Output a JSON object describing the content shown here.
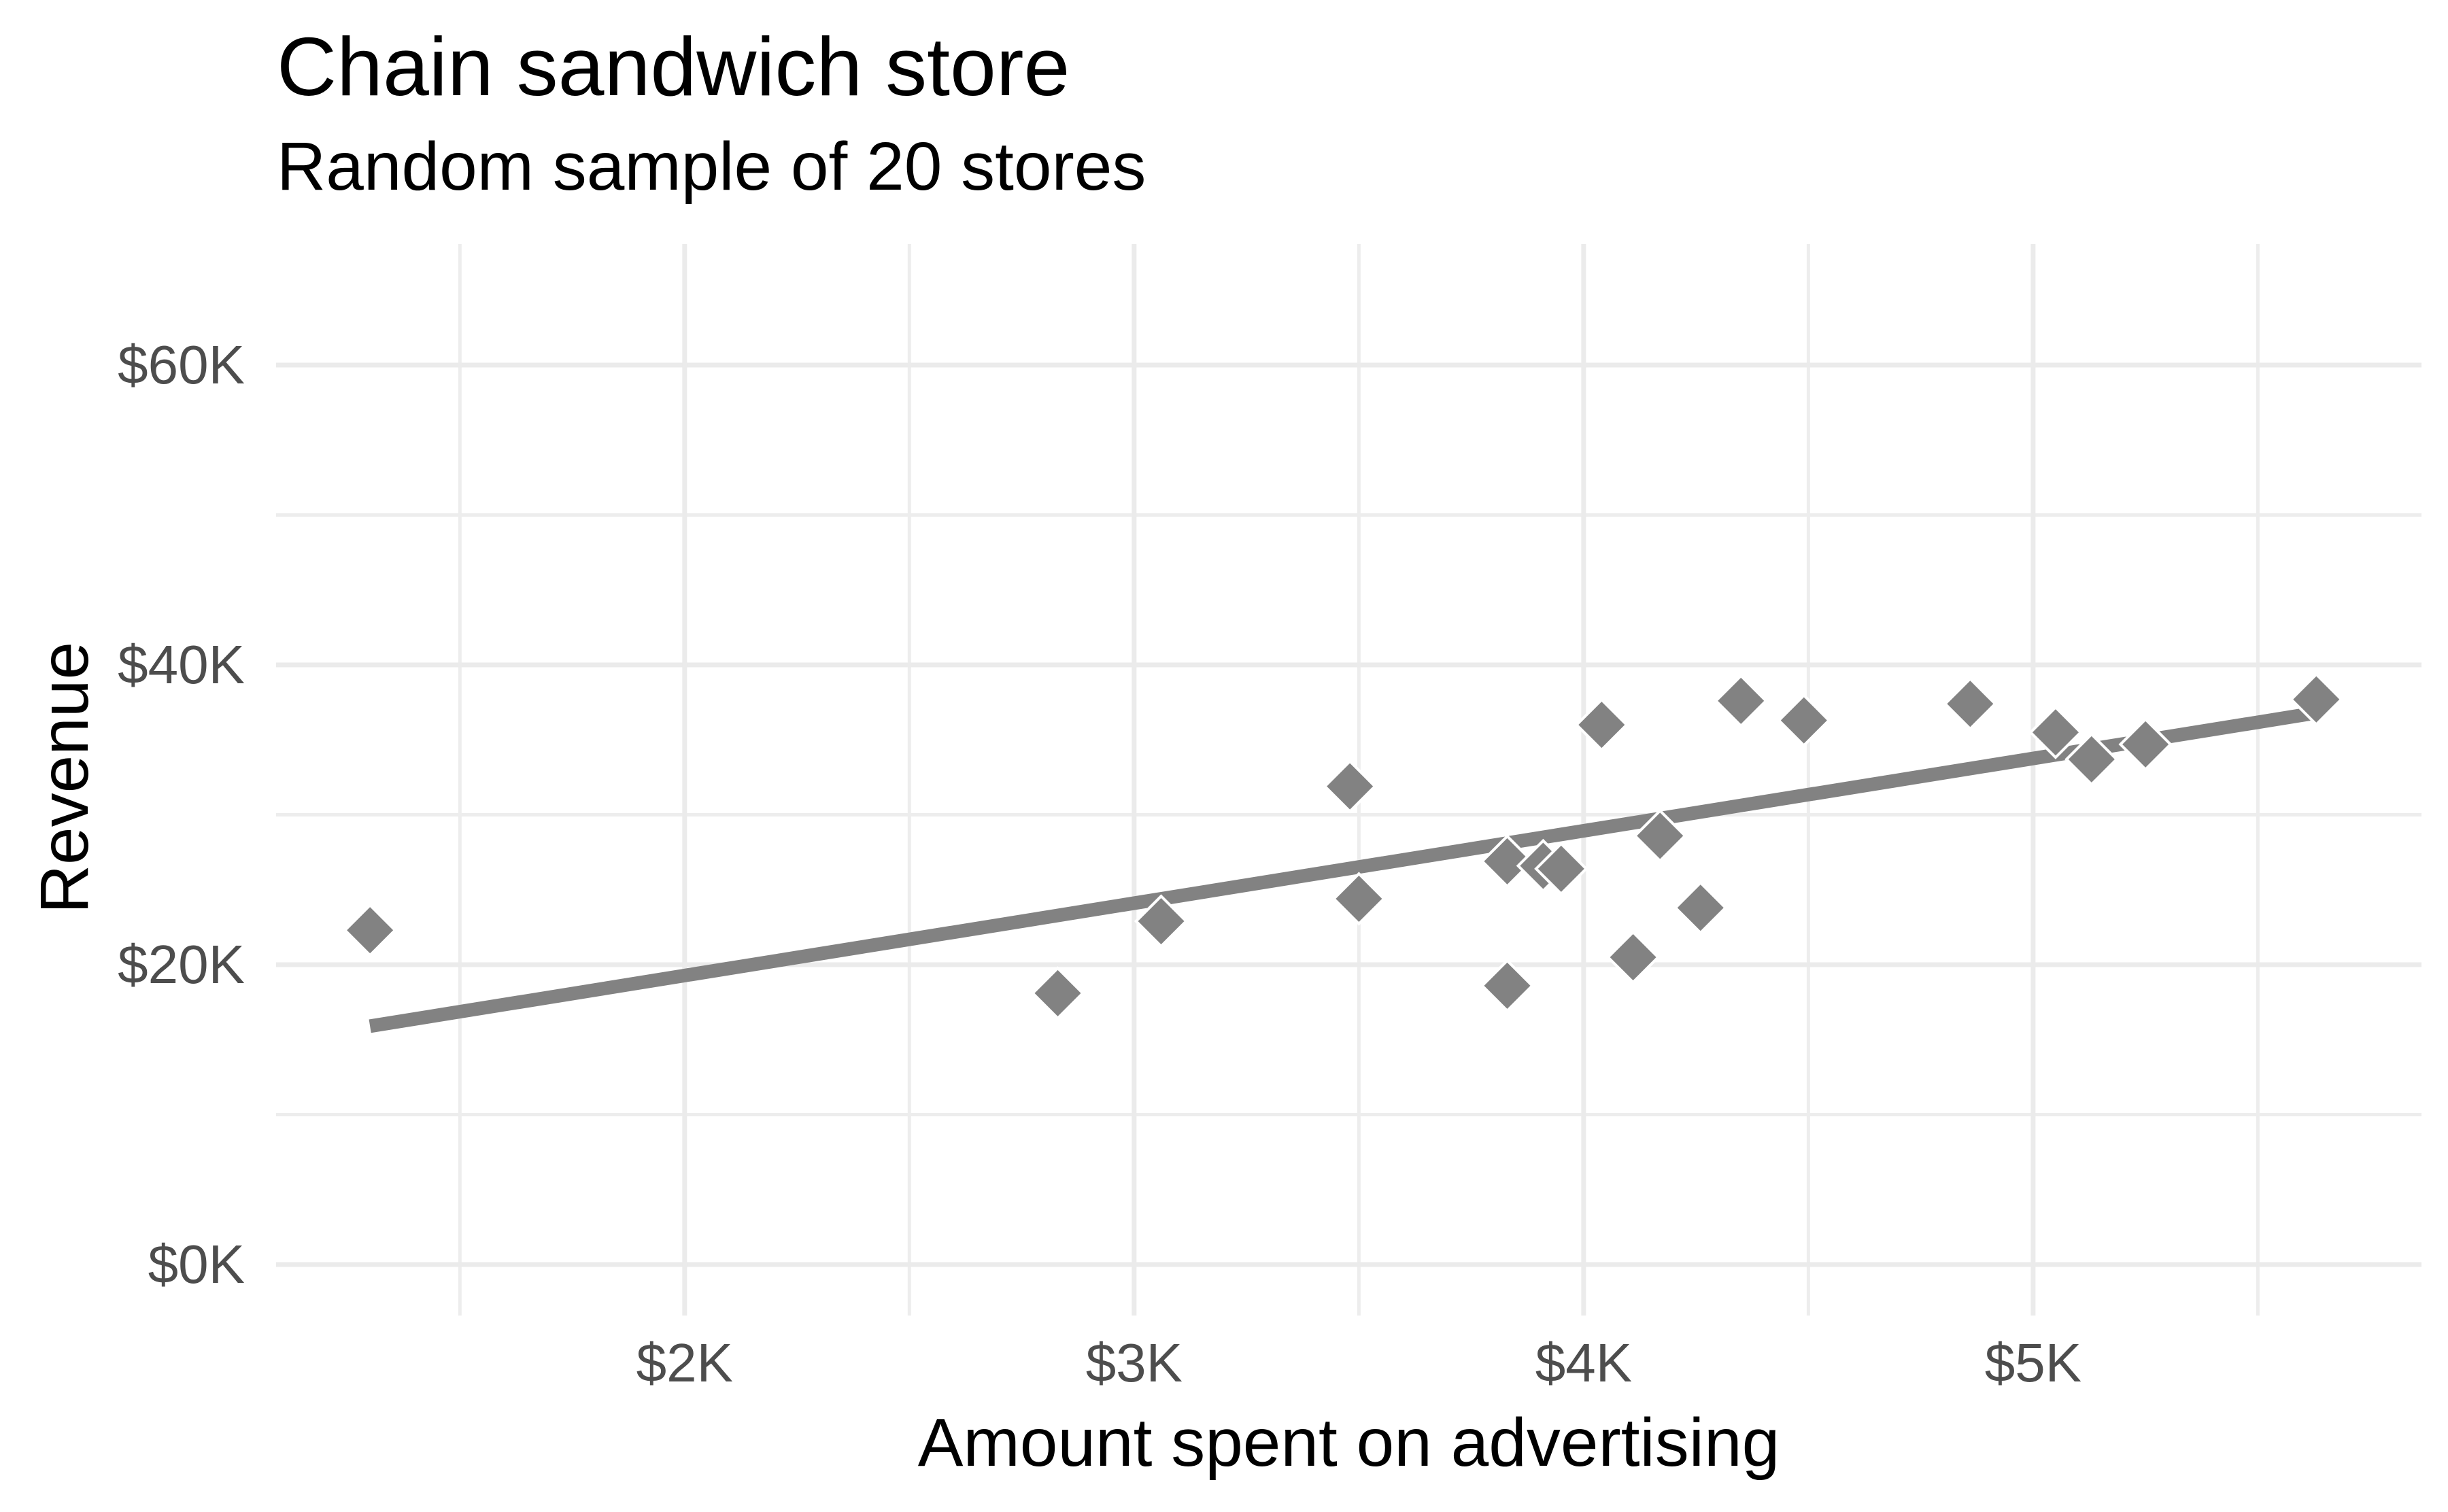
{
  "title": "Chain sandwich store",
  "subtitle": "Random sample of 20 stores",
  "chart_data": {
    "type": "scatter",
    "title": "Chain sandwich store",
    "subtitle": "Random sample of 20 stores",
    "xlabel": "Amount spent on advertising",
    "ylabel": "Revenue",
    "x_unit": "thousand dollars",
    "y_unit": "thousand dollars",
    "xlim": [
      1.091,
      5.864
    ],
    "ylim": [
      -3.4,
      68.07
    ],
    "x_ticks": {
      "values": [
        2,
        3,
        4,
        5
      ],
      "labels": [
        "$2K",
        "$3K",
        "$4K",
        "$5K"
      ],
      "minor": [
        1.5,
        2.5,
        3.5,
        4.5,
        5.5
      ]
    },
    "y_ticks": {
      "values": [
        0,
        20,
        40,
        60
      ],
      "labels": [
        "$0K",
        "$20K",
        "$40K",
        "$60K"
      ],
      "minor": [
        10,
        30,
        50
      ]
    },
    "grid": "major+minor",
    "legend": "none",
    "marker": "diamond",
    "points": [
      {
        "x": 1.3,
        "y": 22.3
      },
      {
        "x": 2.83,
        "y": 18.1
      },
      {
        "x": 3.06,
        "y": 22.9
      },
      {
        "x": 3.48,
        "y": 31.9
      },
      {
        "x": 3.5,
        "y": 24.4
      },
      {
        "x": 3.83,
        "y": 26.9
      },
      {
        "x": 3.91,
        "y": 26.6
      },
      {
        "x": 3.95,
        "y": 26.4
      },
      {
        "x": 3.83,
        "y": 18.6
      },
      {
        "x": 4.04,
        "y": 36.0
      },
      {
        "x": 4.11,
        "y": 20.5
      },
      {
        "x": 4.17,
        "y": 28.6
      },
      {
        "x": 4.26,
        "y": 23.8
      },
      {
        "x": 4.35,
        "y": 37.6
      },
      {
        "x": 4.49,
        "y": 36.3
      },
      {
        "x": 4.86,
        "y": 37.4
      },
      {
        "x": 5.05,
        "y": 35.5
      },
      {
        "x": 5.13,
        "y": 33.7
      },
      {
        "x": 5.25,
        "y": 34.7
      },
      {
        "x": 5.63,
        "y": 37.7
      }
    ],
    "trend_line": {
      "x1": 1.3,
      "y1": 15.9,
      "x2": 5.63,
      "y2": 36.8
    },
    "colors": {
      "point": "#828282",
      "trend": "#828282",
      "point_halo": "#FFFFFF",
      "grid_major": "#EBEBEB",
      "grid_minor": "#EDEDED",
      "tick_text": "#4D4D4D",
      "title_text": "#000000",
      "background": "#FFFFFF"
    }
  }
}
